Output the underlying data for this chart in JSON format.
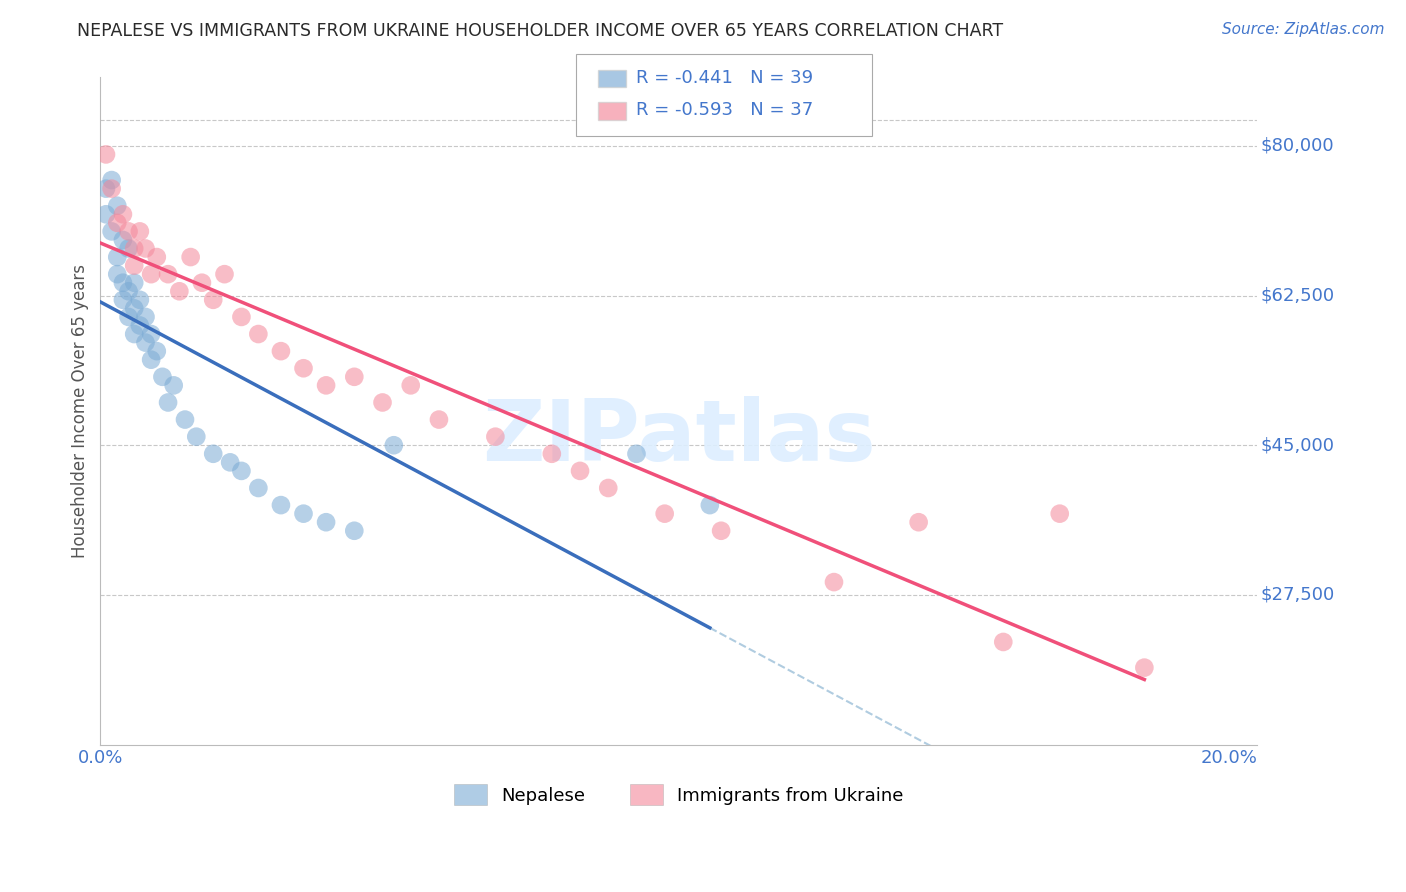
{
  "title": "NEPALESE VS IMMIGRANTS FROM UKRAINE HOUSEHOLDER INCOME OVER 65 YEARS CORRELATION CHART",
  "source": "Source: ZipAtlas.com",
  "ylabel": "Householder Income Over 65 years",
  "xlim": [
    0.0,
    0.205
  ],
  "ylim": [
    10000,
    88000
  ],
  "ytick_vals": [
    27500,
    45000,
    62500,
    80000
  ],
  "ytick_labels": [
    "$27,500",
    "$45,000",
    "$62,500",
    "$80,000"
  ],
  "xtick_vals": [
    0.0,
    0.05,
    0.1,
    0.15,
    0.2
  ],
  "xtick_labels": [
    "0.0%",
    "",
    "",
    "",
    "20.0%"
  ],
  "nepalese_x": [
    0.001,
    0.001,
    0.002,
    0.002,
    0.003,
    0.003,
    0.003,
    0.004,
    0.004,
    0.004,
    0.005,
    0.005,
    0.005,
    0.006,
    0.006,
    0.006,
    0.007,
    0.007,
    0.008,
    0.008,
    0.009,
    0.009,
    0.01,
    0.011,
    0.012,
    0.013,
    0.015,
    0.017,
    0.02,
    0.023,
    0.025,
    0.028,
    0.032,
    0.036,
    0.04,
    0.045,
    0.052,
    0.095,
    0.108
  ],
  "nepalese_y": [
    75000,
    72000,
    76000,
    70000,
    73000,
    67000,
    65000,
    69000,
    64000,
    62000,
    68000,
    63000,
    60000,
    64000,
    61000,
    58000,
    62000,
    59000,
    60000,
    57000,
    58000,
    55000,
    56000,
    53000,
    50000,
    52000,
    48000,
    46000,
    44000,
    43000,
    42000,
    40000,
    38000,
    37000,
    36000,
    35000,
    45000,
    44000,
    38000
  ],
  "ukraine_x": [
    0.001,
    0.002,
    0.003,
    0.004,
    0.005,
    0.006,
    0.006,
    0.007,
    0.008,
    0.009,
    0.01,
    0.012,
    0.014,
    0.016,
    0.018,
    0.02,
    0.022,
    0.025,
    0.028,
    0.032,
    0.036,
    0.04,
    0.045,
    0.05,
    0.055,
    0.06,
    0.07,
    0.08,
    0.085,
    0.09,
    0.1,
    0.11,
    0.13,
    0.145,
    0.16,
    0.17,
    0.185
  ],
  "ukraine_y": [
    79000,
    75000,
    71000,
    72000,
    70000,
    68000,
    66000,
    70000,
    68000,
    65000,
    67000,
    65000,
    63000,
    67000,
    64000,
    62000,
    65000,
    60000,
    58000,
    56000,
    54000,
    52000,
    53000,
    50000,
    52000,
    48000,
    46000,
    44000,
    42000,
    40000,
    37000,
    35000,
    29000,
    36000,
    22000,
    37000,
    19000
  ],
  "nepalese_color": "#7aaad4",
  "ukraine_color": "#f4889a",
  "nepalese_line_color": "#3a6ebc",
  "ukraine_line_color": "#f0507a",
  "dashed_color": "#b0cce0",
  "legend_text_color": "#4477cc",
  "title_color": "#2a2a2a",
  "axis_color": "#4477cc",
  "watermark_color": "#ddeeff",
  "bg_color": "#ffffff",
  "grid_color": "#c8c8c8"
}
